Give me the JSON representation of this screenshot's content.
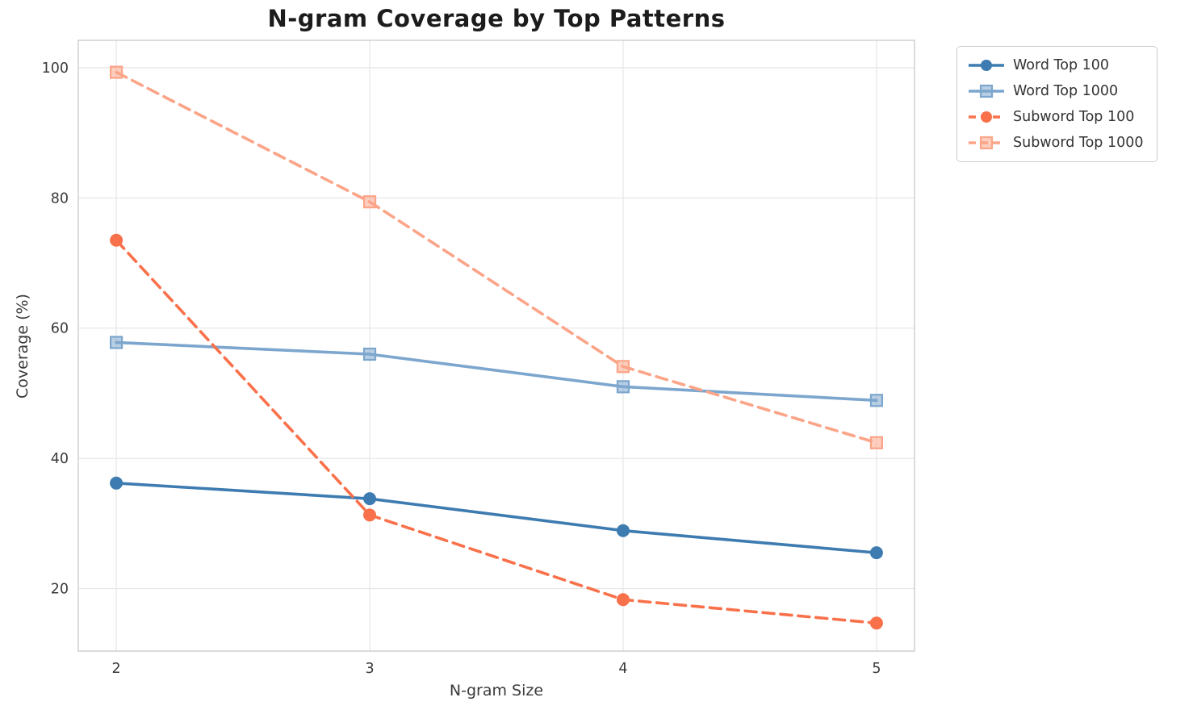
{
  "chart_data": {
    "type": "line",
    "title": "N-gram Coverage by Top Patterns",
    "xlabel": "N-gram Size",
    "ylabel": "Coverage (%)",
    "x": [
      2,
      3,
      4,
      5
    ],
    "xticks": [
      "2",
      "3",
      "4",
      "5"
    ],
    "yticks": [
      "20",
      "40",
      "60",
      "80",
      "100"
    ],
    "ytick_values": [
      20,
      40,
      60,
      80,
      100
    ],
    "xlim": [
      1.85,
      5.15
    ],
    "ylim": [
      10.4,
      104.2
    ],
    "grid": true,
    "legend_position": "outside-right-top",
    "series": [
      {
        "name": "Word Top 100",
        "values": [
          36.2,
          33.8,
          28.9,
          25.5
        ],
        "color": "#3d7bb0",
        "marker": "circle",
        "dash": "solid"
      },
      {
        "name": "Word Top 1000",
        "values": [
          57.8,
          56.0,
          51.0,
          48.9
        ],
        "color": "#7ca6cd",
        "marker": "square",
        "dash": "solid"
      },
      {
        "name": "Subword Top 100",
        "values": [
          73.5,
          31.3,
          18.3,
          14.7
        ],
        "color": "#f9714b",
        "marker": "circle",
        "dash": "dashed"
      },
      {
        "name": "Subword Top 1000",
        "values": [
          99.3,
          79.4,
          54.1,
          42.4
        ],
        "color": "#fba488",
        "marker": "square",
        "dash": "dashed"
      }
    ],
    "colors": {
      "grid": "#e6e6e6",
      "spine": "#cccccc",
      "tick_label": "#3a3a3a",
      "title": "#1c1c1c",
      "plot_background": "#ffffff"
    }
  }
}
